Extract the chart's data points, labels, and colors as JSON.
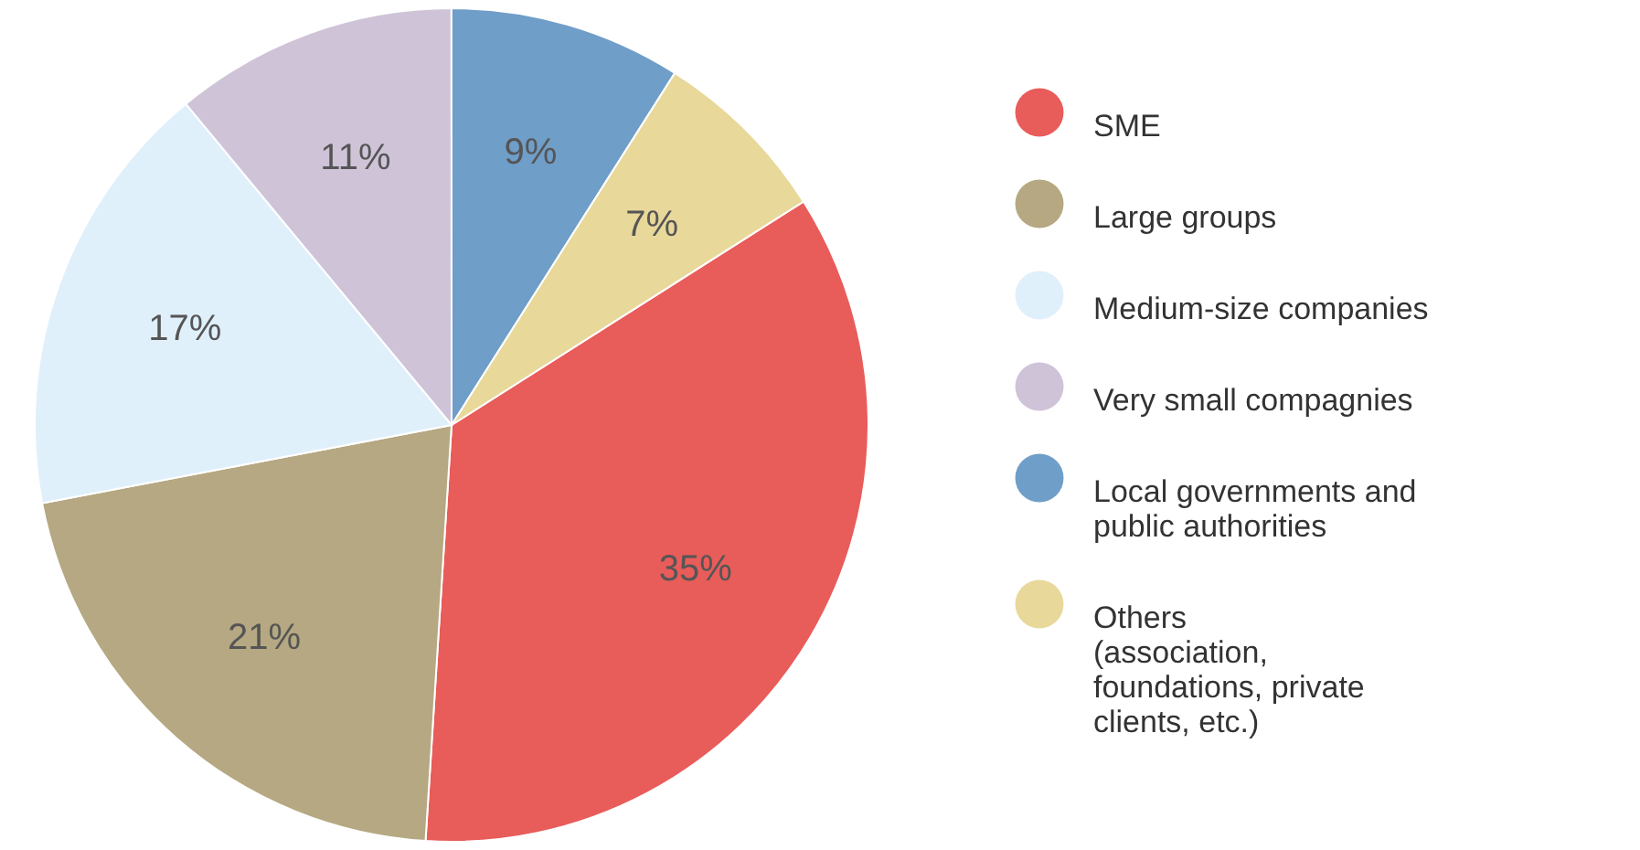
{
  "chart_data": {
    "type": "pie",
    "categories": [
      "SME",
      "Large groups",
      "Medium-size companies",
      "Very small compagnies",
      "Local governments and public authorities",
      "Others (association, foundations, private clients, etc.)"
    ],
    "values": [
      35,
      21,
      17,
      11,
      9,
      7
    ],
    "value_labels": [
      "35%",
      "21%",
      "17%",
      "11%",
      "9%",
      "7%"
    ],
    "colors": [
      "#e85c5a",
      "#b5a882",
      "#dff0fb",
      "#cfc3d8",
      "#6f9ec8",
      "#e8d89a"
    ],
    "legend": "right"
  }
}
